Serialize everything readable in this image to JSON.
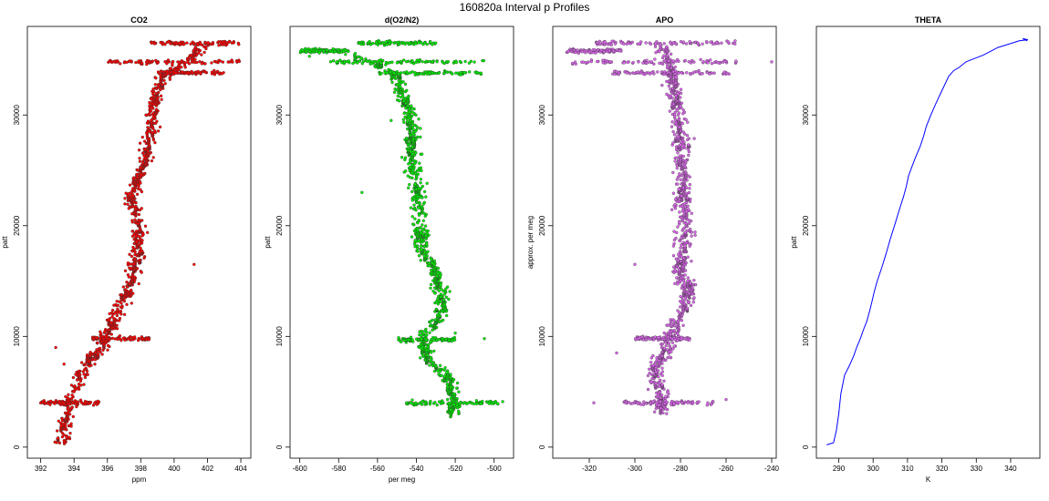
{
  "figure_title": "160820a   Interval p Profiles",
  "chart_data": [
    {
      "type": "scatter",
      "title": "CO2",
      "xlabel": "ppm",
      "ylabel": "patt",
      "xlim": [
        391.2,
        404.6
      ],
      "ylim": [
        -1000,
        38000
      ],
      "xticks": [
        392,
        394,
        396,
        398,
        400,
        402,
        404
      ],
      "yticks": [
        0,
        10000,
        20000,
        30000
      ],
      "color": "#ff0000",
      "profile": [
        [
          393.3,
          300
        ],
        [
          393.6,
          2500
        ],
        [
          393.8,
          4500
        ],
        [
          394.5,
          7000
        ],
        [
          395.6,
          9000
        ],
        [
          396.2,
          11000
        ],
        [
          397.2,
          14000
        ],
        [
          397.7,
          17000
        ],
        [
          397.9,
          20000
        ],
        [
          397.5,
          22000
        ],
        [
          397.7,
          24000
        ],
        [
          398.3,
          26000
        ],
        [
          398.6,
          28000
        ],
        [
          398.7,
          30000
        ],
        [
          399.0,
          32000
        ],
        [
          399.4,
          33500
        ],
        [
          400.8,
          34800
        ],
        [
          401.8,
          36500
        ]
      ],
      "bands": [
        [
          34800,
          396.0,
          404.0
        ],
        [
          36500,
          398.5,
          404.0
        ],
        [
          33800,
          399.0,
          403.0
        ],
        [
          9800,
          395.0,
          398.5
        ],
        [
          4000,
          392.0,
          395.5
        ]
      ],
      "spread": 0.45,
      "outliers": [
        [
          392.9,
          9000
        ],
        [
          393.4,
          7500
        ],
        [
          401.2,
          16500
        ],
        [
          392.2,
          4200
        ]
      ]
    },
    {
      "type": "scatter",
      "title": "d(O2/N2)",
      "xlabel": "per meg",
      "ylabel": "patt",
      "xlim": [
        -605,
        -490
      ],
      "ylim": [
        -1000,
        38000
      ],
      "xticks": [
        -600,
        -580,
        -560,
        -540,
        -520,
        -500
      ],
      "yticks": [
        0,
        10000,
        20000,
        30000
      ],
      "color": "#00ee00",
      "profile": [
        [
          -520,
          3000
        ],
        [
          -521,
          4500
        ],
        [
          -522,
          6000
        ],
        [
          -535,
          8000
        ],
        [
          -536,
          10000
        ],
        [
          -527,
          12000
        ],
        [
          -527,
          14000
        ],
        [
          -530,
          16000
        ],
        [
          -538,
          18000
        ],
        [
          -538,
          21000
        ],
        [
          -540,
          24000
        ],
        [
          -543,
          26000
        ],
        [
          -542,
          28000
        ],
        [
          -543,
          30000
        ],
        [
          -548,
          32000
        ],
        [
          -550,
          33500
        ],
        [
          -562,
          34800
        ],
        [
          -575,
          35500
        ]
      ],
      "bands": [
        [
          34800,
          -585,
          -505
        ],
        [
          36500,
          -570,
          -530
        ],
        [
          35800,
          -600,
          -575
        ],
        [
          33800,
          -560,
          -505
        ],
        [
          9700,
          -550,
          -520
        ],
        [
          4000,
          -545,
          -495
        ]
      ],
      "spread": 4,
      "outliers": [
        [
          -595,
          35300
        ],
        [
          -568,
          23000
        ],
        [
          -553,
          29500
        ],
        [
          -520,
          10300
        ],
        [
          -505,
          9800
        ],
        [
          -545,
          4000
        ]
      ]
    },
    {
      "type": "scatter",
      "title": "APO",
      "xlabel": "",
      "ylabel": "approx. per meg",
      "xlim": [
        -336,
        -238
      ],
      "ylim": [
        -1000,
        38000
      ],
      "xticks": [
        -320,
        -300,
        -280,
        -260,
        -240
      ],
      "yticks": [
        0,
        10000,
        20000,
        30000
      ],
      "color": "#dd66ee",
      "profile": [
        [
          -288,
          3000
        ],
        [
          -289,
          5000
        ],
        [
          -292,
          7000
        ],
        [
          -286,
          9000
        ],
        [
          -282,
          11000
        ],
        [
          -276,
          14000
        ],
        [
          -280,
          16000
        ],
        [
          -278,
          19000
        ],
        [
          -279,
          22000
        ],
        [
          -279,
          25000
        ],
        [
          -280,
          28000
        ],
        [
          -282,
          31000
        ],
        [
          -284,
          33500
        ],
        [
          -285,
          34800
        ],
        [
          -290,
          36500
        ]
      ],
      "bands": [
        [
          34800,
          -328,
          -255
        ],
        [
          36500,
          -318,
          -256
        ],
        [
          35800,
          -330,
          -306
        ],
        [
          33800,
          -310,
          -258
        ],
        [
          9800,
          -300,
          -276
        ],
        [
          4000,
          -305,
          -265
        ]
      ],
      "spread": 4,
      "outliers": [
        [
          -240,
          34800
        ],
        [
          -318,
          4000
        ],
        [
          -300,
          16500
        ],
        [
          -308,
          8500
        ],
        [
          -260,
          4300
        ]
      ]
    },
    {
      "type": "line",
      "title": "THETA",
      "xlabel": "K",
      "ylabel": "patt",
      "xlim": [
        283.5,
        348.5
      ],
      "ylim": [
        -1000,
        38000
      ],
      "xticks": [
        290,
        300,
        310,
        320,
        330,
        340
      ],
      "yticks": [
        0,
        10000,
        20000,
        30000
      ],
      "color": "#0000ff",
      "x": [
        286.5,
        288.5,
        289.3,
        290.0,
        290.6,
        291.7,
        293.0,
        294.3,
        295.2,
        296.3,
        297.2,
        298.2,
        299.0,
        299.7,
        300.3,
        301.2,
        302.5,
        303.8,
        305.0,
        306.2,
        307.2,
        308.0,
        308.8,
        309.6,
        310.3,
        311.5,
        312.5,
        313.6,
        314.6,
        315.5,
        316.8,
        318.2,
        320.0,
        322.0,
        323.4,
        325.0,
        327.0,
        329.5,
        332.0,
        334.5,
        336.3,
        339.5,
        342.5,
        345.0,
        343.5,
        344.8
      ],
      "y": [
        200,
        400,
        1500,
        3000,
        4800,
        6500,
        7300,
        8200,
        9000,
        9800,
        10600,
        11400,
        12300,
        13200,
        14000,
        15000,
        16200,
        17500,
        18800,
        20000,
        21000,
        21800,
        22600,
        23500,
        24500,
        25500,
        26300,
        27100,
        28000,
        29000,
        30000,
        31000,
        32200,
        33500,
        34000,
        34300,
        34800,
        35100,
        35400,
        35800,
        36100,
        36400,
        36700,
        36800,
        36900,
        36700
      ]
    }
  ]
}
